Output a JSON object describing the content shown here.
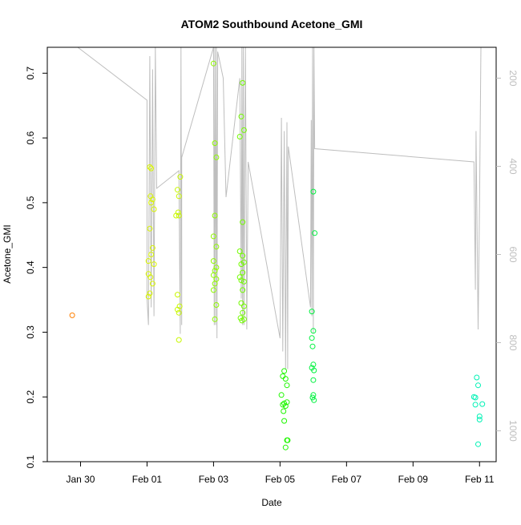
{
  "chart_data": {
    "type": "scatter",
    "title": "ATOM2 Southbound Acetone_GMI",
    "xlabel": "Date",
    "ylabel": "Acetone_GMI",
    "xlim": [
      "2017-01-29T00:00",
      "2017-02-11T12:00"
    ],
    "ylim": [
      0.1,
      0.74
    ],
    "x_ticks": [
      {
        "date": "2017-01-30T00:00",
        "label": "Jan 30"
      },
      {
        "date": "2017-02-01T00:00",
        "label": "Feb 01"
      },
      {
        "date": "2017-02-03T00:00",
        "label": "Feb 03"
      },
      {
        "date": "2017-02-05T00:00",
        "label": "Feb 05"
      },
      {
        "date": "2017-02-07T00:00",
        "label": "Feb 07"
      },
      {
        "date": "2017-02-09T00:00",
        "label": "Feb 09"
      },
      {
        "date": "2017-02-11T00:00",
        "label": "Feb 11"
      }
    ],
    "y_ticks": [
      0.1,
      0.2,
      0.3,
      0.4,
      0.5,
      0.6,
      0.7
    ],
    "secondary_axis": {
      "color": "#bebebe",
      "reversed": true,
      "ylim": [
        1070,
        130
      ],
      "ticks": [
        200,
        400,
        600,
        800,
        1000
      ]
    },
    "grid": false,
    "legend": "none",
    "points": [
      {
        "x": "2017-01-29T18:00",
        "y": 0.326,
        "color": "#ff7f00"
      },
      {
        "x": "2017-02-01T02:00",
        "y": 0.555,
        "color": "#d9f500"
      },
      {
        "x": "2017-02-01T03:00",
        "y": 0.553,
        "color": "#d9f500"
      },
      {
        "x": "2017-02-01T02:30",
        "y": 0.51,
        "color": "#d9f500"
      },
      {
        "x": "2017-02-01T04:00",
        "y": 0.505,
        "color": "#d9f500"
      },
      {
        "x": "2017-02-01T03:00",
        "y": 0.5,
        "color": "#d9f500"
      },
      {
        "x": "2017-02-01T05:00",
        "y": 0.49,
        "color": "#d9f500"
      },
      {
        "x": "2017-02-01T02:00",
        "y": 0.46,
        "color": "#d9f500"
      },
      {
        "x": "2017-02-01T04:00",
        "y": 0.43,
        "color": "#d9f500"
      },
      {
        "x": "2017-02-01T03:00",
        "y": 0.42,
        "color": "#d9f500"
      },
      {
        "x": "2017-02-01T01:00",
        "y": 0.41,
        "color": "#d9f500"
      },
      {
        "x": "2017-02-01T05:00",
        "y": 0.405,
        "color": "#d9f500"
      },
      {
        "x": "2017-02-01T01:00",
        "y": 0.39,
        "color": "#d9f500"
      },
      {
        "x": "2017-02-01T02:30",
        "y": 0.385,
        "color": "#d9f500"
      },
      {
        "x": "2017-02-01T04:00",
        "y": 0.375,
        "color": "#d9f500"
      },
      {
        "x": "2017-02-01T02:00",
        "y": 0.36,
        "color": "#d9f500"
      },
      {
        "x": "2017-02-01T01:00",
        "y": 0.355,
        "color": "#d9f500"
      },
      {
        "x": "2017-02-01T22:00",
        "y": 0.52,
        "color": "#c8f700"
      },
      {
        "x": "2017-02-02T00:00",
        "y": 0.54,
        "color": "#c8f700"
      },
      {
        "x": "2017-02-01T23:00",
        "y": 0.51,
        "color": "#c8f700"
      },
      {
        "x": "2017-02-01T22:30",
        "y": 0.485,
        "color": "#c8f700"
      },
      {
        "x": "2017-02-01T21:00",
        "y": 0.48,
        "color": "#c8f700"
      },
      {
        "x": "2017-02-01T23:00",
        "y": 0.48,
        "color": "#c8f700"
      },
      {
        "x": "2017-02-01T22:00",
        "y": 0.358,
        "color": "#c8f700"
      },
      {
        "x": "2017-02-01T23:30",
        "y": 0.34,
        "color": "#c8f700"
      },
      {
        "x": "2017-02-01T22:00",
        "y": 0.335,
        "color": "#c8f700"
      },
      {
        "x": "2017-02-01T23:00",
        "y": 0.33,
        "color": "#c8f700"
      },
      {
        "x": "2017-02-01T23:00",
        "y": 0.288,
        "color": "#c8f700"
      },
      {
        "x": "2017-02-03T00:00",
        "y": 0.715,
        "color": "#8ffa00"
      },
      {
        "x": "2017-02-03T01:00",
        "y": 0.592,
        "color": "#8ffa00"
      },
      {
        "x": "2017-02-03T02:00",
        "y": 0.57,
        "color": "#8ffa00"
      },
      {
        "x": "2017-02-03T01:00",
        "y": 0.48,
        "color": "#8ffa00"
      },
      {
        "x": "2017-02-03T00:00",
        "y": 0.448,
        "color": "#8ffa00"
      },
      {
        "x": "2017-02-03T02:00",
        "y": 0.432,
        "color": "#8ffa00"
      },
      {
        "x": "2017-02-03T00:00",
        "y": 0.41,
        "color": "#8ffa00"
      },
      {
        "x": "2017-02-03T02:00",
        "y": 0.4,
        "color": "#8ffa00"
      },
      {
        "x": "2017-02-03T01:00",
        "y": 0.395,
        "color": "#8ffa00"
      },
      {
        "x": "2017-02-03T00:00",
        "y": 0.388,
        "color": "#8ffa00"
      },
      {
        "x": "2017-02-03T02:00",
        "y": 0.382,
        "color": "#8ffa00"
      },
      {
        "x": "2017-02-03T01:00",
        "y": 0.375,
        "color": "#8ffa00"
      },
      {
        "x": "2017-02-03T00:00",
        "y": 0.365,
        "color": "#8ffa00"
      },
      {
        "x": "2017-02-03T02:00",
        "y": 0.342,
        "color": "#8ffa00"
      },
      {
        "x": "2017-02-03T01:00",
        "y": 0.32,
        "color": "#8ffa00"
      },
      {
        "x": "2017-02-03T21:00",
        "y": 0.685,
        "color": "#73fb00"
      },
      {
        "x": "2017-02-03T20:00",
        "y": 0.633,
        "color": "#73fb00"
      },
      {
        "x": "2017-02-03T22:00",
        "y": 0.612,
        "color": "#73fb00"
      },
      {
        "x": "2017-02-03T19:00",
        "y": 0.602,
        "color": "#73fb00"
      },
      {
        "x": "2017-02-03T21:00",
        "y": 0.47,
        "color": "#73fb00"
      },
      {
        "x": "2017-02-03T19:00",
        "y": 0.425,
        "color": "#73fb00"
      },
      {
        "x": "2017-02-03T21:00",
        "y": 0.418,
        "color": "#73fb00"
      },
      {
        "x": "2017-02-03T22:00",
        "y": 0.408,
        "color": "#73fb00"
      },
      {
        "x": "2017-02-03T20:00",
        "y": 0.405,
        "color": "#73fb00"
      },
      {
        "x": "2017-02-03T21:00",
        "y": 0.392,
        "color": "#73fb00"
      },
      {
        "x": "2017-02-03T19:00",
        "y": 0.385,
        "color": "#73fb00"
      },
      {
        "x": "2017-02-03T20:00",
        "y": 0.38,
        "color": "#73fb00"
      },
      {
        "x": "2017-02-03T22:00",
        "y": 0.378,
        "color": "#73fb00"
      },
      {
        "x": "2017-02-03T21:00",
        "y": 0.365,
        "color": "#73fb00"
      },
      {
        "x": "2017-02-03T20:00",
        "y": 0.345,
        "color": "#73fb00"
      },
      {
        "x": "2017-02-03T22:00",
        "y": 0.34,
        "color": "#73fb00"
      },
      {
        "x": "2017-02-03T21:00",
        "y": 0.33,
        "color": "#73fb00"
      },
      {
        "x": "2017-02-03T19:30",
        "y": 0.322,
        "color": "#73fb00"
      },
      {
        "x": "2017-02-03T22:00",
        "y": 0.32,
        "color": "#73fb00"
      },
      {
        "x": "2017-02-03T20:30",
        "y": 0.318,
        "color": "#73fb00"
      },
      {
        "x": "2017-02-05T03:00",
        "y": 0.24,
        "color": "#1ff600"
      },
      {
        "x": "2017-02-05T02:00",
        "y": 0.232,
        "color": "#1ff600"
      },
      {
        "x": "2017-02-05T04:00",
        "y": 0.228,
        "color": "#1ff600"
      },
      {
        "x": "2017-02-05T05:00",
        "y": 0.218,
        "color": "#1ff600"
      },
      {
        "x": "2017-02-05T01:00",
        "y": 0.203,
        "color": "#1ff600"
      },
      {
        "x": "2017-02-05T03:00",
        "y": 0.19,
        "color": "#1ff600"
      },
      {
        "x": "2017-02-05T05:00",
        "y": 0.192,
        "color": "#1ff600"
      },
      {
        "x": "2017-02-05T02:00",
        "y": 0.188,
        "color": "#1ff600"
      },
      {
        "x": "2017-02-05T04:00",
        "y": 0.186,
        "color": "#1ff600"
      },
      {
        "x": "2017-02-05T02:30",
        "y": 0.178,
        "color": "#1ff600"
      },
      {
        "x": "2017-02-05T03:00",
        "y": 0.163,
        "color": "#1ff600"
      },
      {
        "x": "2017-02-05T05:00",
        "y": 0.133,
        "color": "#1ff600"
      },
      {
        "x": "2017-02-05T05:30",
        "y": 0.133,
        "color": "#1ff600"
      },
      {
        "x": "2017-02-05T04:00",
        "y": 0.122,
        "color": "#1ff600"
      },
      {
        "x": "2017-02-06T00:00",
        "y": 0.517,
        "color": "#00f23f"
      },
      {
        "x": "2017-02-06T01:00",
        "y": 0.453,
        "color": "#00f23f"
      },
      {
        "x": "2017-02-05T23:00",
        "y": 0.332,
        "color": "#00f23f"
      },
      {
        "x": "2017-02-06T00:00",
        "y": 0.302,
        "color": "#00f23f"
      },
      {
        "x": "2017-02-05T23:00",
        "y": 0.291,
        "color": "#00f23f"
      },
      {
        "x": "2017-02-05T23:30",
        "y": 0.278,
        "color": "#00f23f"
      },
      {
        "x": "2017-02-06T00:00",
        "y": 0.25,
        "color": "#00f23f"
      },
      {
        "x": "2017-02-05T23:00",
        "y": 0.245,
        "color": "#00f23f"
      },
      {
        "x": "2017-02-06T00:30",
        "y": 0.241,
        "color": "#00f23f"
      },
      {
        "x": "2017-02-06T00:00",
        "y": 0.226,
        "color": "#00f23f"
      },
      {
        "x": "2017-02-06T00:00",
        "y": 0.203,
        "color": "#00f23f"
      },
      {
        "x": "2017-02-05T23:30",
        "y": 0.199,
        "color": "#00f23f"
      },
      {
        "x": "2017-02-06T00:30",
        "y": 0.195,
        "color": "#00f23f"
      },
      {
        "x": "2017-02-10T20:00",
        "y": 0.2,
        "color": "#00f2b5"
      },
      {
        "x": "2017-02-10T22:00",
        "y": 0.23,
        "color": "#00f2b5"
      },
      {
        "x": "2017-02-10T23:00",
        "y": 0.218,
        "color": "#00f2b5"
      },
      {
        "x": "2017-02-10T21:00",
        "y": 0.199,
        "color": "#00f2b5"
      },
      {
        "x": "2017-02-11T02:00",
        "y": 0.189,
        "color": "#00f2b5"
      },
      {
        "x": "2017-02-10T21:00",
        "y": 0.188,
        "color": "#00f2b5"
      },
      {
        "x": "2017-02-11T00:00",
        "y": 0.17,
        "color": "#00f2b5"
      },
      {
        "x": "2017-02-11T00:00",
        "y": 0.165,
        "color": "#00f2b5"
      },
      {
        "x": "2017-02-10T23:00",
        "y": 0.127,
        "color": "#00f2b5"
      }
    ],
    "secondary_series": {
      "color": "#bebebe",
      "points": [
        [
          "2017-01-29T22:00",
          130
        ],
        [
          "2017-02-01T00:00",
          250
        ],
        [
          "2017-02-01T00:00",
          700
        ],
        [
          "2017-02-01T01:00",
          760
        ],
        [
          "2017-02-01T02:00",
          150
        ],
        [
          "2017-02-01T03:00",
          720
        ],
        [
          "2017-02-01T04:00",
          180
        ],
        [
          "2017-02-01T05:00",
          740
        ],
        [
          "2017-02-01T06:00",
          130
        ],
        [
          "2017-02-01T07:00",
          450
        ],
        [
          "2017-02-01T23:00",
          410
        ],
        [
          "2017-02-02T00:00",
          780
        ],
        [
          "2017-02-02T00:30",
          130
        ],
        [
          "2017-02-02T01:00",
          760
        ],
        [
          "2017-02-02T01:00",
          380
        ],
        [
          "2017-02-03T00:00",
          130
        ],
        [
          "2017-02-03T00:30",
          760
        ],
        [
          "2017-02-03T01:00",
          130
        ],
        [
          "2017-02-03T01:30",
          760
        ],
        [
          "2017-02-03T02:00",
          130
        ],
        [
          "2017-02-03T02:30",
          790
        ],
        [
          "2017-02-03T03:00",
          140
        ],
        [
          "2017-02-03T07:00",
          200
        ],
        [
          "2017-02-03T09:00",
          470
        ],
        [
          "2017-02-03T19:00",
          200
        ],
        [
          "2017-02-03T20:00",
          700
        ],
        [
          "2017-02-03T20:30",
          130
        ],
        [
          "2017-02-03T21:00",
          760
        ],
        [
          "2017-02-03T21:30",
          130
        ],
        [
          "2017-02-03T22:00",
          760
        ],
        [
          "2017-02-03T23:00",
          130
        ],
        [
          "2017-02-04T00:00",
          770
        ],
        [
          "2017-02-04T01:00",
          390
        ],
        [
          "2017-02-05T00:00",
          790
        ],
        [
          "2017-02-05T01:00",
          290
        ],
        [
          "2017-02-05T02:00",
          820
        ],
        [
          "2017-02-05T03:00",
          320
        ],
        [
          "2017-02-05T04:00",
          860
        ],
        [
          "2017-02-05T05:00",
          300
        ],
        [
          "2017-02-05T05:30",
          860
        ],
        [
          "2017-02-05T06:00",
          355
        ],
        [
          "2017-02-05T22:00",
          720
        ],
        [
          "2017-02-05T22:30",
          295
        ],
        [
          "2017-02-05T23:00",
          740
        ],
        [
          "2017-02-05T23:30",
          130
        ],
        [
          "2017-02-06T00:00",
          780
        ],
        [
          "2017-02-06T00:30",
          130
        ],
        [
          "2017-02-06T01:00",
          360
        ],
        [
          "2017-02-10T20:00",
          390
        ],
        [
          "2017-02-10T21:00",
          680
        ],
        [
          "2017-02-10T21:30",
          320
        ],
        [
          "2017-02-10T23:00",
          770
        ],
        [
          "2017-02-11T00:00",
          480
        ],
        [
          "2017-02-11T01:00",
          130
        ]
      ]
    }
  }
}
